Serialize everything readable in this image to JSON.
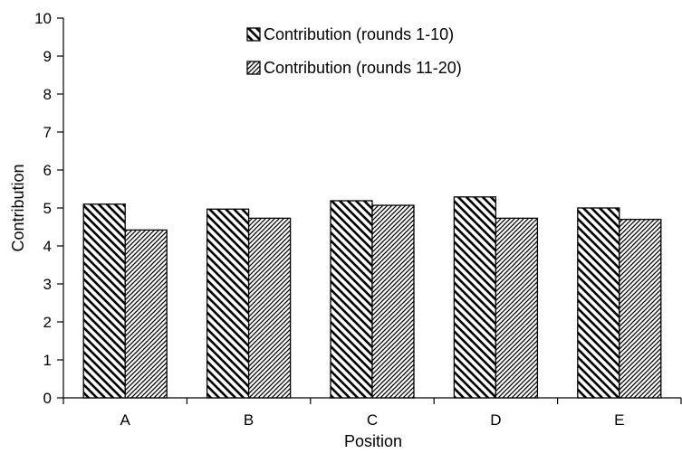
{
  "chart_data": {
    "type": "bar",
    "categories": [
      "A",
      "B",
      "C",
      "D",
      "E"
    ],
    "series": [
      {
        "name": "Contribution (rounds 1-10)",
        "values": [
          5.1,
          4.97,
          5.19,
          5.29,
          5.0
        ]
      },
      {
        "name": "Contribution (rounds 11-20)",
        "values": [
          4.42,
          4.73,
          5.07,
          4.73,
          4.7
        ]
      }
    ],
    "title": "",
    "xlabel": "Position",
    "ylabel": "Contribution",
    "ylim": [
      0,
      10
    ],
    "yticks": [
      "0",
      "1",
      "2",
      "3",
      "4",
      "5",
      "6",
      "7",
      "8",
      "9",
      "10"
    ],
    "grid": false,
    "legend_position": "top-center"
  }
}
